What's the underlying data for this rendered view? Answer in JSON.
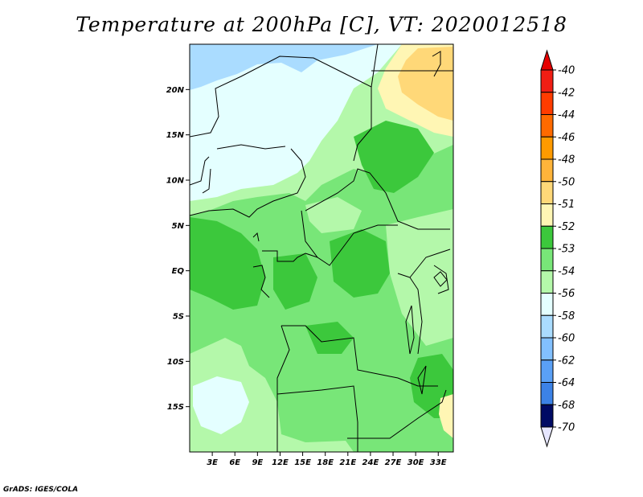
{
  "title": "Temperature at 200hPa [C], VT: 2020012518",
  "credit": "GrADS: IGES/COLA",
  "map": {
    "lon_range": [
      0,
      35
    ],
    "lat_range": [
      -20,
      25
    ],
    "lat_ticks": [
      {
        "value": 20,
        "label": "20N"
      },
      {
        "value": 15,
        "label": "15N"
      },
      {
        "value": 10,
        "label": "10N"
      },
      {
        "value": 5,
        "label": "5N"
      },
      {
        "value": 0,
        "label": "EQ"
      },
      {
        "value": -5,
        "label": "5S"
      },
      {
        "value": -10,
        "label": "10S"
      },
      {
        "value": -15,
        "label": "15S"
      }
    ],
    "lon_ticks": [
      {
        "value": 3,
        "label": "3E"
      },
      {
        "value": 6,
        "label": "6E"
      },
      {
        "value": 9,
        "label": "9E"
      },
      {
        "value": 12,
        "label": "12E"
      },
      {
        "value": 15,
        "label": "15E"
      },
      {
        "value": 18,
        "label": "18E"
      },
      {
        "value": 21,
        "label": "21E"
      },
      {
        "value": 24,
        "label": "24E"
      },
      {
        "value": 27,
        "label": "27E"
      },
      {
        "value": 30,
        "label": "30E"
      },
      {
        "value": 33,
        "label": "33E"
      }
    ]
  },
  "colorbar": {
    "levels": [
      {
        "label": "-40",
        "color": "#f01e14"
      },
      {
        "label": "-42",
        "color": "#ff3c00"
      },
      {
        "label": "-44",
        "color": "#ff6a00"
      },
      {
        "label": "-46",
        "color": "#ff9a00"
      },
      {
        "label": "-48",
        "color": "#ffb43a"
      },
      {
        "label": "-50",
        "color": "#ffd878"
      },
      {
        "label": "-51",
        "color": "#fff6b4"
      },
      {
        "label": "-52",
        "color": "#3cc83c"
      },
      {
        "label": "-53",
        "color": "#78e678"
      },
      {
        "label": "-54",
        "color": "#b4f8aa"
      },
      {
        "label": "-56",
        "color": "#e4ffff"
      },
      {
        "label": "-58",
        "color": "#aadcff"
      },
      {
        "label": "-60",
        "color": "#82c0ff"
      },
      {
        "label": "-62",
        "color": "#5aa0f5"
      },
      {
        "label": "-64",
        "color": "#3c82e6"
      },
      {
        "label": "-68",
        "color": "#1e5ad2"
      },
      {
        "label": "-70",
        "color": "#0a32b4"
      }
    ],
    "top_color": "#e60000",
    "bottom_color": "#e6e6ff",
    "below_70_color": "#000a64"
  }
}
